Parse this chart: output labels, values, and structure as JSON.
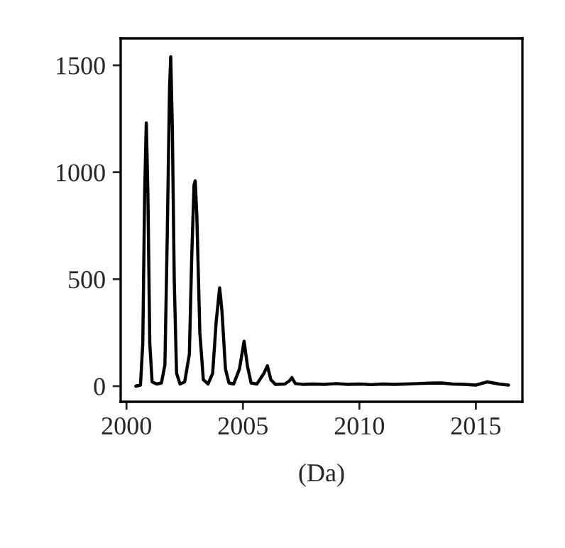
{
  "chart_data": {
    "type": "line",
    "xlabel": "(Da)",
    "x": [
      2000.4,
      2000.6,
      2000.7,
      2000.78,
      2000.85,
      2000.92,
      2001.0,
      2001.1,
      2001.3,
      2001.5,
      2001.65,
      2001.75,
      2001.85,
      2001.9,
      2001.97,
      2002.05,
      2002.15,
      2002.3,
      2002.5,
      2002.7,
      2002.8,
      2002.9,
      2002.95,
      2003.02,
      2003.15,
      2003.3,
      2003.5,
      2003.7,
      2003.85,
      2004.0,
      2004.1,
      2004.25,
      2004.4,
      2004.6,
      2004.85,
      2005.05,
      2005.2,
      2005.35,
      2005.6,
      2005.9,
      2006.05,
      2006.2,
      2006.4,
      2006.8,
      2007.0,
      2007.1,
      2007.25,
      2007.6,
      2008,
      2008.5,
      2009,
      2009.5,
      2010,
      2010.5,
      2011,
      2011.5,
      2012,
      2012.5,
      2013,
      2013.5,
      2014,
      2014.5,
      2015,
      2015.5,
      2016,
      2016.4
    ],
    "series": [
      {
        "color": "#000000",
        "values": [
          0,
          5,
          200,
          900,
          1230,
          900,
          200,
          20,
          10,
          15,
          100,
          700,
          1400,
          1540,
          1200,
          500,
          60,
          10,
          20,
          150,
          600,
          940,
          960,
          800,
          250,
          30,
          10,
          60,
          300,
          460,
          350,
          80,
          15,
          10,
          80,
          210,
          90,
          15,
          10,
          60,
          95,
          30,
          8,
          10,
          25,
          40,
          12,
          8,
          10,
          8,
          12,
          8,
          10,
          7,
          10,
          8,
          10,
          12,
          14,
          15,
          10,
          8,
          5,
          20,
          10,
          5
        ]
      }
    ],
    "xlim": [
      1999.75,
      2017.0
    ],
    "ylim": [
      -73,
      1626
    ],
    "xticks": [
      2000,
      2005,
      2010,
      2015
    ],
    "yticks": [
      0,
      500,
      1000,
      1500
    ],
    "grid": false,
    "legend": false,
    "marker": "none",
    "line_style": "solid"
  }
}
